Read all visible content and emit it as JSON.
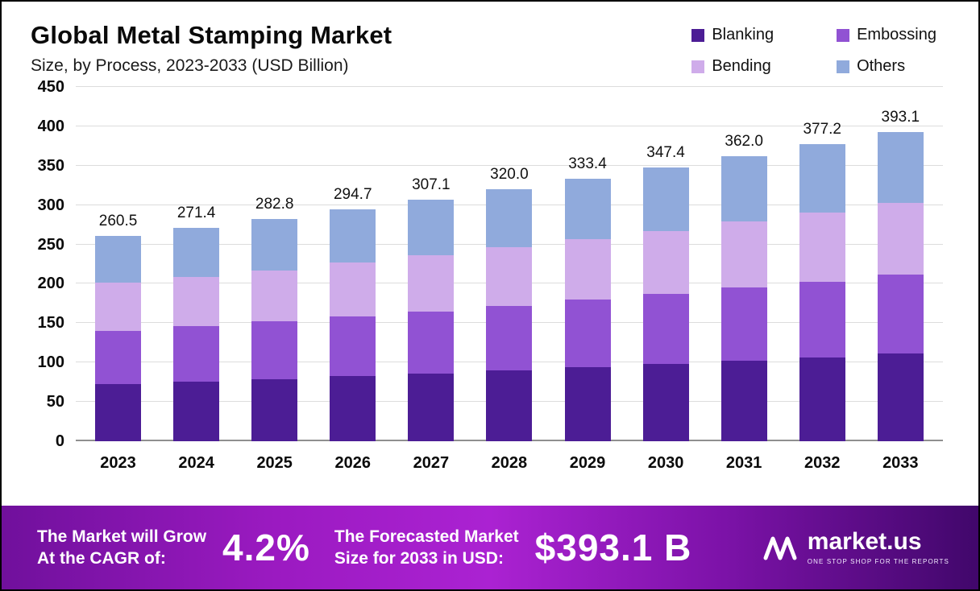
{
  "header": {
    "title": "Global Metal Stamping Market",
    "subtitle": "Size, by Process, 2023-2033 (USD Billion)"
  },
  "chart_data": {
    "type": "bar",
    "stacked": true,
    "title": "Global Metal Stamping Market Size, by Process, 2023-2033 (USD Billion)",
    "xlabel": "",
    "ylabel": "",
    "ylim": [
      0,
      450
    ],
    "y_ticks": [
      0,
      50,
      100,
      150,
      200,
      250,
      300,
      350,
      400,
      450
    ],
    "grid": true,
    "legend_position": "top-right",
    "categories": [
      "2023",
      "2024",
      "2025",
      "2026",
      "2027",
      "2028",
      "2029",
      "2030",
      "2031",
      "2032",
      "2033"
    ],
    "series": [
      {
        "name": "Blanking",
        "color": "#4C1D95",
        "values": [
          73,
          76,
          79,
          83,
          86,
          90,
          94,
          98,
          102,
          106,
          111
        ]
      },
      {
        "name": "Embossing",
        "color": "#9152D3",
        "values": [
          67,
          70,
          73,
          76,
          79,
          82,
          86,
          89,
          93,
          97,
          101
        ]
      },
      {
        "name": "Bending",
        "color": "#CFACEA",
        "values": [
          61,
          63,
          65,
          68,
          71,
          74,
          77,
          80,
          84,
          87,
          91
        ]
      },
      {
        "name": "Others",
        "color": "#90AADC",
        "values": [
          59.5,
          62.4,
          65.8,
          67.7,
          71.1,
          74.0,
          76.4,
          80.4,
          83.0,
          87.2,
          90.1
        ]
      }
    ],
    "totals": [
      "260.5",
      "271.4",
      "282.8",
      "294.7",
      "307.1",
      "320.0",
      "333.4",
      "347.4",
      "362.0",
      "377.2",
      "393.1"
    ]
  },
  "footer": {
    "cagr_label_line1": "The Market will Grow",
    "cagr_label_line2": "At the CAGR of:",
    "cagr_value": "4.2%",
    "forecast_label_line1": "The Forecasted Market",
    "forecast_label_line2": "Size for 2033 in USD:",
    "forecast_value": "$393.1 B",
    "brand": "market.us",
    "brand_tagline": "ONE STOP SHOP FOR THE REPORTS"
  }
}
